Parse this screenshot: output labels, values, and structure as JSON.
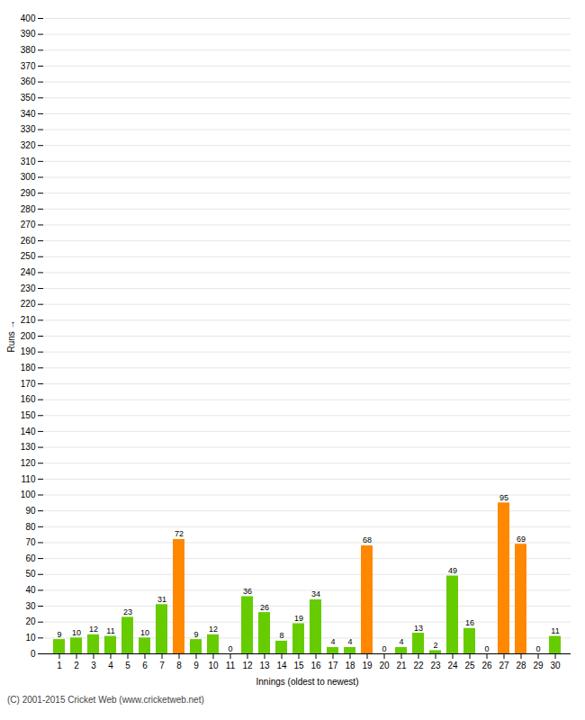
{
  "chart_data": {
    "type": "bar",
    "xlabel": "Innings (oldest to newest)",
    "ylabel": "Runs",
    "caption": "(C) 2001-2015 Cricket Web (www.cricketweb.net)",
    "categories": [
      "1",
      "2",
      "3",
      "4",
      "5",
      "6",
      "7",
      "8",
      "9",
      "10",
      "11",
      "12",
      "13",
      "14",
      "15",
      "16",
      "17",
      "18",
      "19",
      "20",
      "21",
      "22",
      "23",
      "24",
      "25",
      "26",
      "27",
      "28",
      "29",
      "30"
    ],
    "values": [
      9,
      10,
      12,
      11,
      23,
      10,
      31,
      72,
      9,
      12,
      0,
      36,
      26,
      8,
      19,
      34,
      4,
      4,
      68,
      0,
      4,
      13,
      2,
      49,
      16,
      0,
      95,
      69,
      0,
      11
    ],
    "colors": [
      "#66cc00",
      "#66cc00",
      "#66cc00",
      "#66cc00",
      "#66cc00",
      "#66cc00",
      "#66cc00",
      "#ff8800",
      "#66cc00",
      "#66cc00",
      "#66cc00",
      "#66cc00",
      "#66cc00",
      "#66cc00",
      "#66cc00",
      "#66cc00",
      "#66cc00",
      "#66cc00",
      "#ff8800",
      "#66cc00",
      "#66cc00",
      "#66cc00",
      "#66cc00",
      "#66cc00",
      "#66cc00",
      "#66cc00",
      "#ff8800",
      "#ff8800",
      "#66cc00",
      "#66cc00"
    ],
    "ylim": [
      0,
      400
    ],
    "yticks": [
      0,
      10,
      20,
      30,
      40,
      50,
      60,
      70,
      80,
      90,
      100,
      110,
      120,
      130,
      140,
      150,
      160,
      170,
      180,
      190,
      200,
      210,
      220,
      230,
      240,
      250,
      260,
      270,
      280,
      290,
      300,
      310,
      320,
      330,
      340,
      350,
      360,
      370,
      380,
      390,
      400
    ],
    "grid": true,
    "data_labels": true
  }
}
